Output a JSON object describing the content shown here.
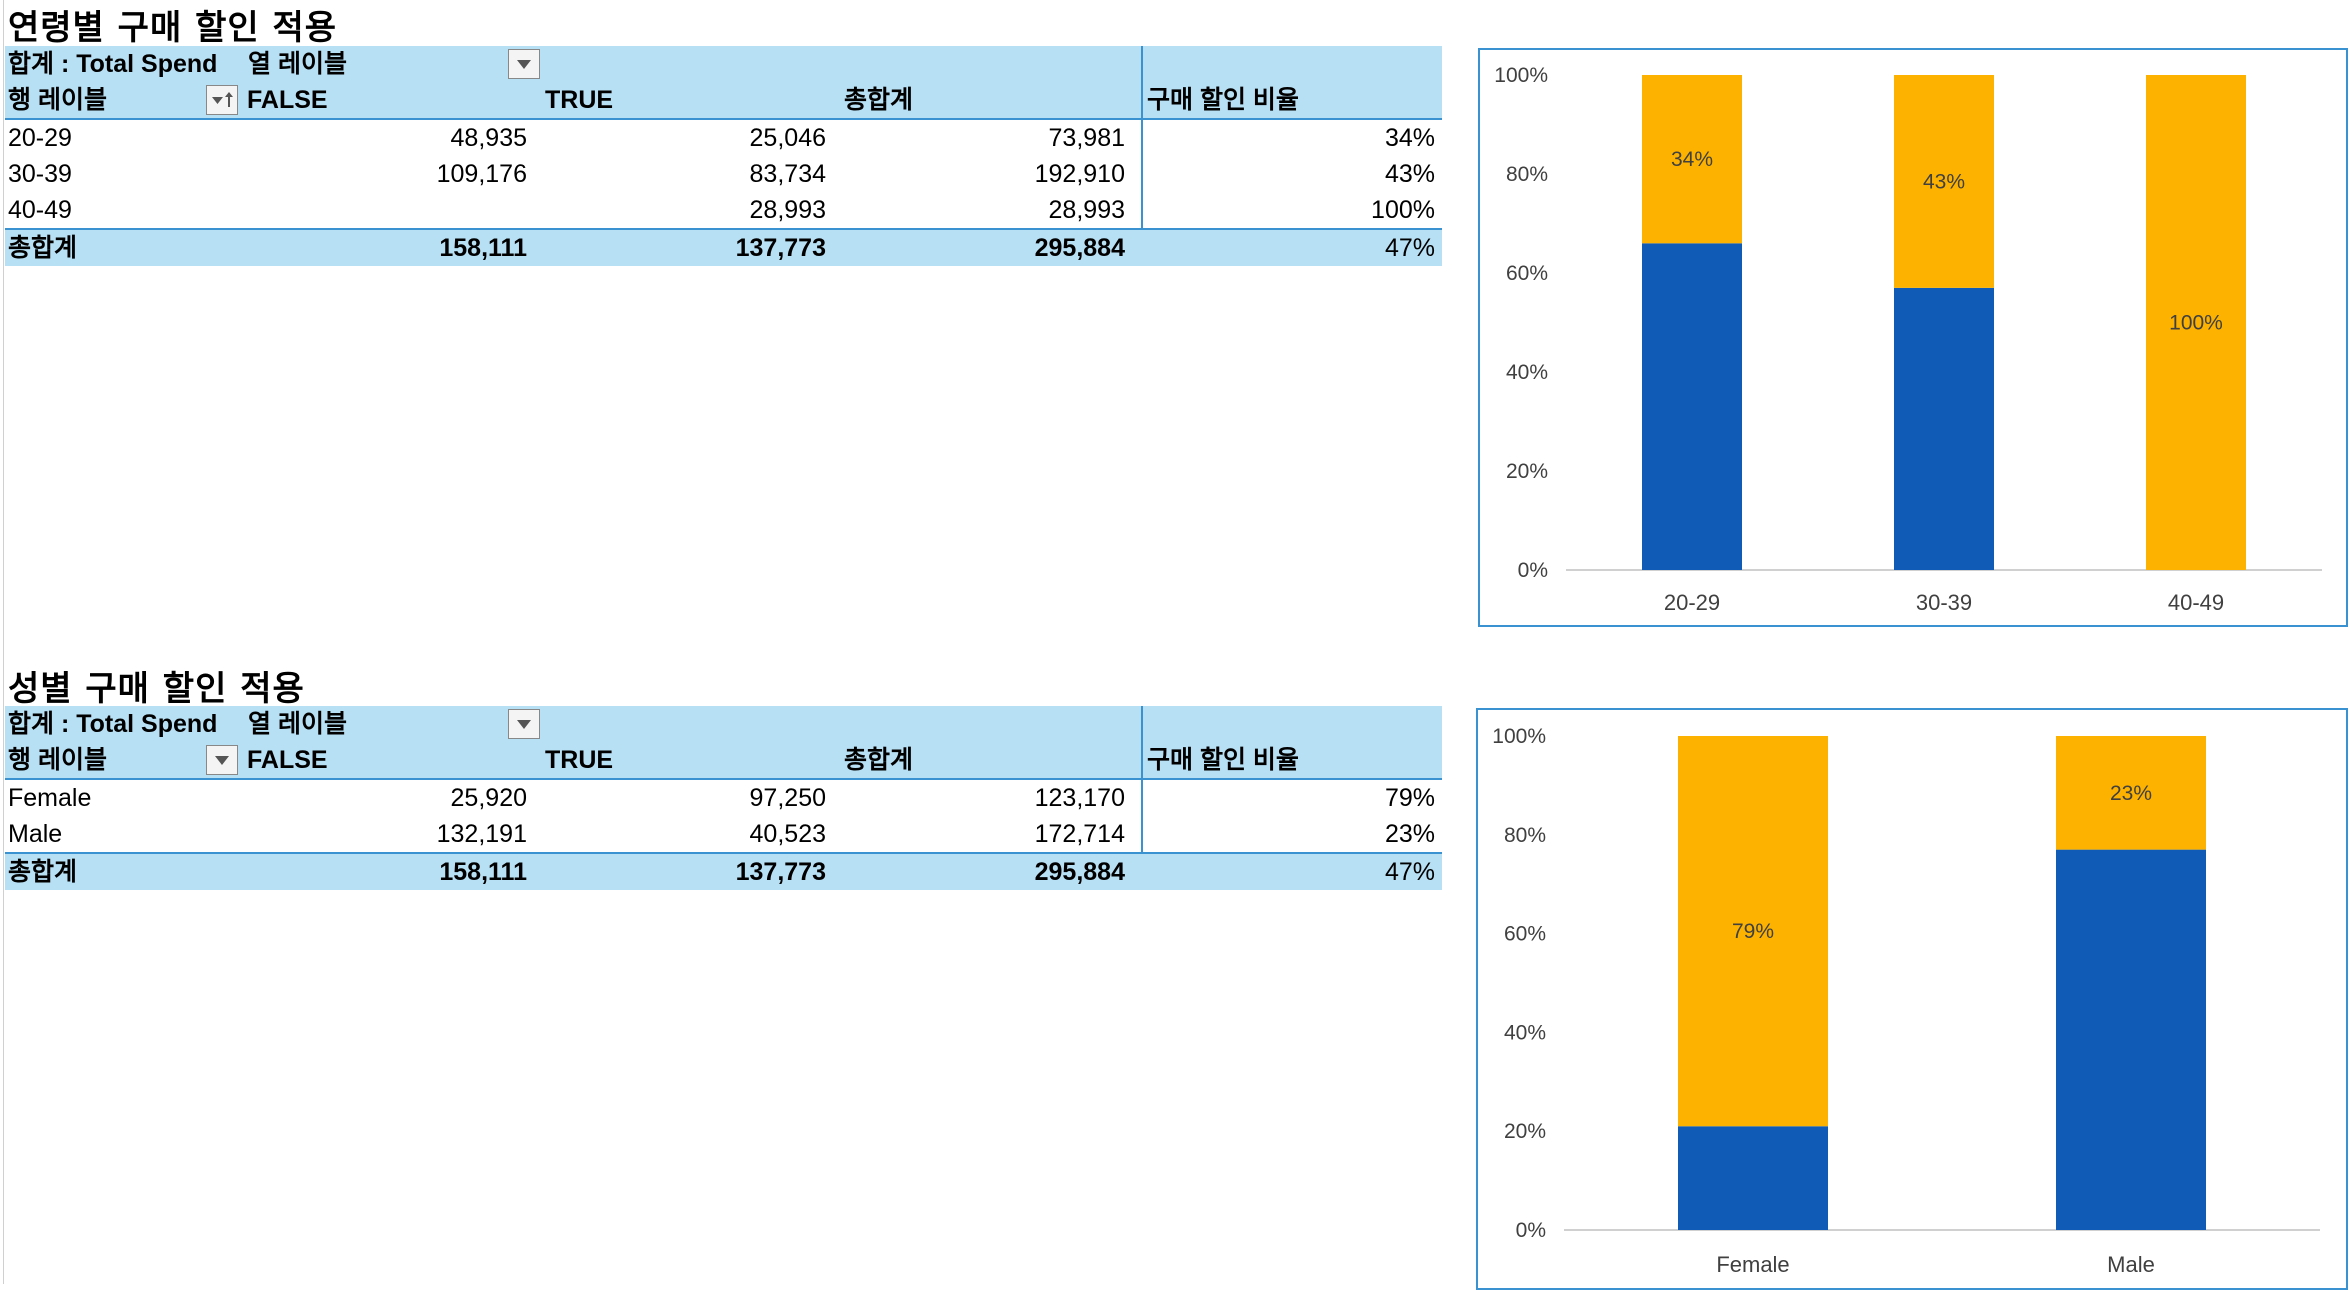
{
  "colors": {
    "false_series": "#0f5bb5",
    "true_series": "#fdb200",
    "header_fill": "#b8e0f4",
    "border": "#3a93d0"
  },
  "age_section": {
    "title": "연령별 구매 할인 적용",
    "pivot": {
      "value_label": "합계 : Total Spend",
      "col_label": "열 레이블",
      "row_label": "행 레이블",
      "columns": [
        "FALSE",
        "TRUE",
        "총합계",
        "구매 할인 비율"
      ],
      "rows": [
        {
          "label": "20-29",
          "false": "48,935",
          "true": "25,046",
          "total": "73,981",
          "ratio": "34%"
        },
        {
          "label": "30-39",
          "false": "109,176",
          "true": "83,734",
          "total": "192,910",
          "ratio": "43%"
        },
        {
          "label": "40-49",
          "false": "",
          "true": "28,993",
          "total": "28,993",
          "ratio": "100%"
        }
      ],
      "grand_total": {
        "label": "총합계",
        "false": "158,111",
        "true": "137,773",
        "total": "295,884",
        "ratio": "47%"
      }
    }
  },
  "gender_section": {
    "title": "성별 구매 할인 적용",
    "pivot": {
      "value_label": "합계 : Total Spend",
      "col_label": "열 레이블",
      "row_label": "행 레이블",
      "columns": [
        "FALSE",
        "TRUE",
        "총합계",
        "구매 할인 비율"
      ],
      "rows": [
        {
          "label": "Female",
          "false": "25,920",
          "true": "97,250",
          "total": "123,170",
          "ratio": "79%"
        },
        {
          "label": "Male",
          "false": "132,191",
          "true": "40,523",
          "total": "172,714",
          "ratio": "23%"
        }
      ],
      "grand_total": {
        "label": "총합계",
        "false": "158,111",
        "true": "137,773",
        "total": "295,884",
        "ratio": "47%"
      }
    }
  },
  "chart_data": [
    {
      "type": "bar",
      "stacked": "percent",
      "categories": [
        "20-29",
        "30-39",
        "40-49"
      ],
      "series": [
        {
          "values": [
            66,
            57,
            0
          ]
        },
        {
          "values": [
            34,
            43,
            100
          ],
          "labels": [
            "34%",
            "43%",
            "100%"
          ]
        }
      ],
      "yticks": [
        "0%",
        "20%",
        "40%",
        "60%",
        "80%",
        "100%"
      ],
      "ylim": [
        0,
        100
      ],
      "grid": false,
      "legend": "none"
    },
    {
      "type": "bar",
      "stacked": "percent",
      "categories": [
        "Female",
        "Male"
      ],
      "series": [
        {
          "values": [
            21,
            77
          ]
        },
        {
          "values": [
            79,
            23
          ],
          "labels": [
            "79%",
            "23%"
          ]
        }
      ],
      "yticks": [
        "0%",
        "20%",
        "40%",
        "60%",
        "80%",
        "100%"
      ],
      "ylim": [
        0,
        100
      ],
      "grid": false,
      "legend": "none"
    }
  ]
}
